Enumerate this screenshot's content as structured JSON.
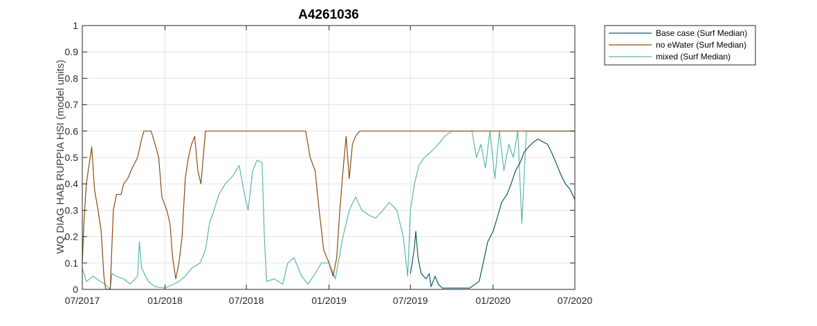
{
  "chart_data": {
    "type": "line",
    "title": "A4261036",
    "xlabel": "",
    "ylabel": "WQ DIAG HAB RUPPIA HSI (model units)",
    "xlim": [
      "2017-07-01",
      "2020-07-01"
    ],
    "ylim": [
      0,
      1
    ],
    "x_ticks": [
      "07/2017",
      "01/2018",
      "07/2018",
      "01/2019",
      "07/2019",
      "01/2020",
      "07/2020"
    ],
    "y_ticks": [
      "0",
      "0.1",
      "0.2",
      "0.3",
      "0.4",
      "0.5",
      "0.6",
      "0.7",
      "0.8",
      "0.9",
      "1"
    ],
    "grid": true,
    "legend_position": "outside-top-right",
    "series": [
      {
        "name": "Base case (Surf Median)",
        "color": "#0a5a64",
        "points": [
          [
            "2019-07-01",
            0.06
          ],
          [
            "2019-07-05",
            0.1
          ],
          [
            "2019-07-10",
            0.16
          ],
          [
            "2019-07-13",
            0.22
          ],
          [
            "2019-07-18",
            0.12
          ],
          [
            "2019-07-25",
            0.06
          ],
          [
            "2019-08-05",
            0.04
          ],
          [
            "2019-08-12",
            0.06
          ],
          [
            "2019-08-16",
            0.01
          ],
          [
            "2019-08-25",
            0.05
          ],
          [
            "2019-09-01",
            0.02
          ],
          [
            "2019-09-10",
            0.005
          ],
          [
            "2019-10-01",
            0.005
          ],
          [
            "2019-10-20",
            0.005
          ],
          [
            "2019-11-10",
            0.005
          ],
          [
            "2019-11-22",
            0.02
          ],
          [
            "2019-12-01",
            0.03
          ],
          [
            "2019-12-10",
            0.1
          ],
          [
            "2019-12-20",
            0.18
          ],
          [
            "2020-01-01",
            0.22
          ],
          [
            "2020-01-10",
            0.27
          ],
          [
            "2020-01-20",
            0.33
          ],
          [
            "2020-02-01",
            0.36
          ],
          [
            "2020-02-10",
            0.4
          ],
          [
            "2020-02-20",
            0.45
          ],
          [
            "2020-03-01",
            0.48
          ],
          [
            "2020-03-10",
            0.52
          ],
          [
            "2020-03-20",
            0.54
          ],
          [
            "2020-04-01",
            0.56
          ],
          [
            "2020-04-10",
            0.57
          ],
          [
            "2020-04-20",
            0.56
          ],
          [
            "2020-05-01",
            0.55
          ],
          [
            "2020-05-10",
            0.52
          ],
          [
            "2020-05-20",
            0.48
          ],
          [
            "2020-06-01",
            0.43
          ],
          [
            "2020-06-10",
            0.4
          ],
          [
            "2020-06-20",
            0.38
          ],
          [
            "2020-07-01",
            0.34
          ]
        ]
      },
      {
        "name": "no eWater (Surf Median)",
        "color": "#8b4a0e",
        "points": [
          [
            "2017-07-01",
            0.1
          ],
          [
            "2017-07-05",
            0.27
          ],
          [
            "2017-07-10",
            0.4
          ],
          [
            "2017-07-15",
            0.46
          ],
          [
            "2017-07-22",
            0.54
          ],
          [
            "2017-07-28",
            0.38
          ],
          [
            "2017-08-05",
            0.3
          ],
          [
            "2017-08-12",
            0.22
          ],
          [
            "2017-08-18",
            0.05
          ],
          [
            "2017-08-22",
            0.0
          ],
          [
            "2017-09-01",
            0.0
          ],
          [
            "2017-09-08",
            0.3
          ],
          [
            "2017-09-15",
            0.36
          ],
          [
            "2017-09-25",
            0.36
          ],
          [
            "2017-10-01",
            0.4
          ],
          [
            "2017-10-10",
            0.42
          ],
          [
            "2017-10-20",
            0.46
          ],
          [
            "2017-11-01",
            0.5
          ],
          [
            "2017-11-10",
            0.57
          ],
          [
            "2017-11-15",
            0.6
          ],
          [
            "2017-12-01",
            0.6
          ],
          [
            "2017-12-10",
            0.55
          ],
          [
            "2017-12-18",
            0.5
          ],
          [
            "2017-12-25",
            0.35
          ],
          [
            "2018-01-05",
            0.3
          ],
          [
            "2018-01-12",
            0.25
          ],
          [
            "2018-01-18",
            0.12
          ],
          [
            "2018-01-25",
            0.04
          ],
          [
            "2018-02-01",
            0.1
          ],
          [
            "2018-02-08",
            0.2
          ],
          [
            "2018-02-15",
            0.42
          ],
          [
            "2018-02-22",
            0.5
          ],
          [
            "2018-03-01",
            0.55
          ],
          [
            "2018-03-08",
            0.58
          ],
          [
            "2018-03-15",
            0.45
          ],
          [
            "2018-03-22",
            0.4
          ],
          [
            "2018-04-01",
            0.6
          ],
          [
            "2018-05-01",
            0.6
          ],
          [
            "2018-07-01",
            0.6
          ],
          [
            "2018-10-01",
            0.6
          ],
          [
            "2018-11-10",
            0.6
          ],
          [
            "2018-11-20",
            0.5
          ],
          [
            "2018-12-01",
            0.45
          ],
          [
            "2018-12-10",
            0.3
          ],
          [
            "2018-12-20",
            0.15
          ],
          [
            "2019-01-01",
            0.1
          ],
          [
            "2019-01-10",
            0.05
          ],
          [
            "2019-01-18",
            0.12
          ],
          [
            "2019-01-25",
            0.3
          ],
          [
            "2019-02-01",
            0.45
          ],
          [
            "2019-02-08",
            0.58
          ],
          [
            "2019-02-15",
            0.42
          ],
          [
            "2019-02-22",
            0.55
          ],
          [
            "2019-03-01",
            0.58
          ],
          [
            "2019-03-10",
            0.6
          ],
          [
            "2019-04-01",
            0.6
          ],
          [
            "2019-07-01",
            0.6
          ],
          [
            "2020-01-01",
            0.6
          ],
          [
            "2020-07-01",
            0.6
          ]
        ]
      },
      {
        "name": "mixed (Surf Median)",
        "color": "#5ab6ad",
        "points": [
          [
            "2017-07-01",
            0.08
          ],
          [
            "2017-07-10",
            0.03
          ],
          [
            "2017-07-25",
            0.05
          ],
          [
            "2017-08-10",
            0.03
          ],
          [
            "2017-08-20",
            0.02
          ],
          [
            "2017-09-01",
            0.0
          ],
          [
            "2017-09-05",
            0.06
          ],
          [
            "2017-09-15",
            0.05
          ],
          [
            "2017-10-01",
            0.04
          ],
          [
            "2017-10-15",
            0.02
          ],
          [
            "2017-11-01",
            0.05
          ],
          [
            "2017-11-05",
            0.18
          ],
          [
            "2017-11-10",
            0.08
          ],
          [
            "2017-11-25",
            0.03
          ],
          [
            "2017-12-10",
            0.01
          ],
          [
            "2018-01-01",
            0.005
          ],
          [
            "2018-01-20",
            0.02
          ],
          [
            "2018-02-01",
            0.03
          ],
          [
            "2018-02-15",
            0.05
          ],
          [
            "2018-03-01",
            0.08
          ],
          [
            "2018-03-20",
            0.1
          ],
          [
            "2018-04-01",
            0.15
          ],
          [
            "2018-04-10",
            0.25
          ],
          [
            "2018-04-20",
            0.3
          ],
          [
            "2018-05-01",
            0.36
          ],
          [
            "2018-05-15",
            0.4
          ],
          [
            "2018-06-01",
            0.43
          ],
          [
            "2018-06-15",
            0.47
          ],
          [
            "2018-06-28",
            0.35
          ],
          [
            "2018-07-05",
            0.3
          ],
          [
            "2018-07-15",
            0.45
          ],
          [
            "2018-07-25",
            0.49
          ],
          [
            "2018-08-05",
            0.48
          ],
          [
            "2018-08-10",
            0.2
          ],
          [
            "2018-08-15",
            0.03
          ],
          [
            "2018-09-01",
            0.04
          ],
          [
            "2018-09-20",
            0.02
          ],
          [
            "2018-10-01",
            0.1
          ],
          [
            "2018-10-15",
            0.12
          ],
          [
            "2018-11-01",
            0.05
          ],
          [
            "2018-11-15",
            0.02
          ],
          [
            "2018-12-01",
            0.06
          ],
          [
            "2018-12-15",
            0.1
          ],
          [
            "2019-01-01",
            0.1
          ],
          [
            "2019-01-15",
            0.04
          ],
          [
            "2019-02-01",
            0.2
          ],
          [
            "2019-02-15",
            0.3
          ],
          [
            "2019-03-01",
            0.35
          ],
          [
            "2019-03-15",
            0.3
          ],
          [
            "2019-04-01",
            0.28
          ],
          [
            "2019-04-15",
            0.27
          ],
          [
            "2019-05-01",
            0.3
          ],
          [
            "2019-05-15",
            0.33
          ],
          [
            "2019-06-01",
            0.3
          ],
          [
            "2019-06-15",
            0.2
          ],
          [
            "2019-06-25",
            0.05
          ],
          [
            "2019-07-01",
            0.3
          ],
          [
            "2019-07-10",
            0.4
          ],
          [
            "2019-07-20",
            0.47
          ],
          [
            "2019-08-01",
            0.5
          ],
          [
            "2019-08-15",
            0.52
          ],
          [
            "2019-09-01",
            0.55
          ],
          [
            "2019-09-15",
            0.58
          ],
          [
            "2019-10-01",
            0.6
          ],
          [
            "2019-11-15",
            0.6
          ],
          [
            "2019-11-25",
            0.5
          ],
          [
            "2019-12-05",
            0.55
          ],
          [
            "2019-12-15",
            0.46
          ],
          [
            "2019-12-25",
            0.6
          ],
          [
            "2020-01-05",
            0.42
          ],
          [
            "2020-01-15",
            0.6
          ],
          [
            "2020-01-25",
            0.45
          ],
          [
            "2020-02-05",
            0.55
          ],
          [
            "2020-02-15",
            0.5
          ],
          [
            "2020-02-25",
            0.6
          ],
          [
            "2020-03-05",
            0.25
          ],
          [
            "2020-03-15",
            0.6
          ],
          [
            "2020-04-01",
            0.6
          ],
          [
            "2020-07-01",
            0.6
          ]
        ]
      }
    ]
  }
}
